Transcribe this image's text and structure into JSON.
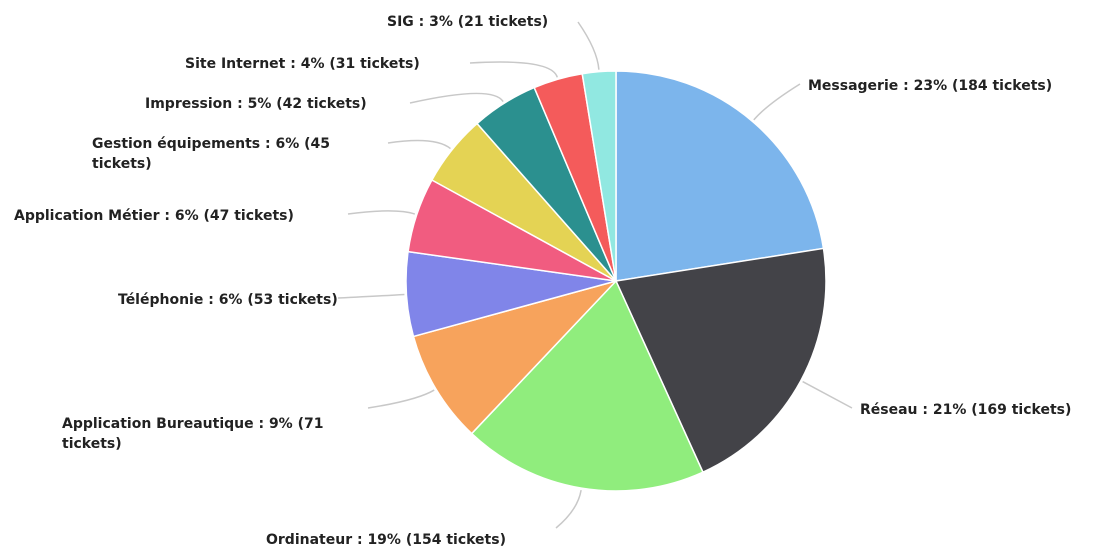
{
  "chart_data": {
    "type": "pie",
    "title": "",
    "slices": [
      {
        "name": "Messagerie",
        "label": "Messagerie : 23% (184 tickets)",
        "value": 184,
        "percent": 23,
        "color": "#7cb5ec"
      },
      {
        "name": "Réseau",
        "label": "Réseau : 21% (169 tickets)",
        "value": 169,
        "percent": 21,
        "color": "#434348"
      },
      {
        "name": "Ordinateur",
        "label": "Ordinateur : 19% (154 tickets)",
        "value": 154,
        "percent": 19,
        "color": "#90ed7d"
      },
      {
        "name": "Application Bureautique",
        "label": "Application Bureautique : 9% (71 tickets)",
        "value": 71,
        "percent": 9,
        "color": "#f7a35c"
      },
      {
        "name": "Téléphonie",
        "label": "Téléphonie : 6% (53 tickets)",
        "value": 53,
        "percent": 6,
        "color": "#8085e9"
      },
      {
        "name": "Application Métier",
        "label": "Application Métier : 6% (47 tickets)",
        "value": 47,
        "percent": 6,
        "color": "#f15c80"
      },
      {
        "name": "Gestion équipements",
        "label": "Gestion équipements : 6% (45 tickets)",
        "value": 45,
        "percent": 6,
        "color": "#e4d354"
      },
      {
        "name": "Impression",
        "label": "Impression : 5% (42 tickets)",
        "value": 42,
        "percent": 5,
        "color": "#2b908f"
      },
      {
        "name": "Site Internet",
        "label": "Site Internet : 4% (31 tickets)",
        "value": 31,
        "percent": 4,
        "color": "#f45b5b"
      },
      {
        "name": "SIG",
        "label": "SIG : 3% (21 tickets)",
        "value": 21,
        "percent": 3,
        "color": "#91e8e1"
      }
    ]
  }
}
